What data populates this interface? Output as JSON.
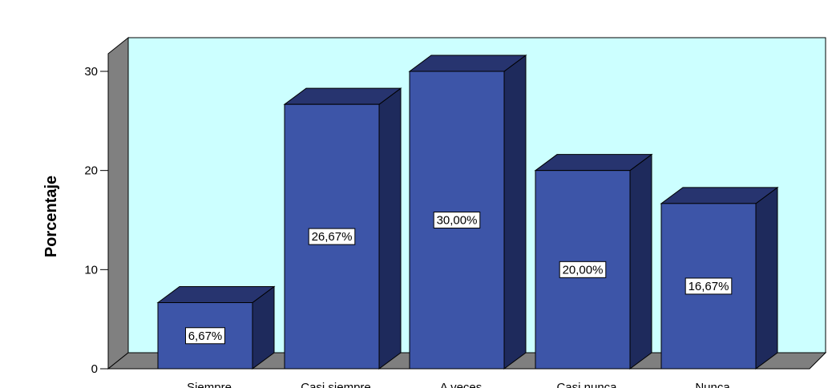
{
  "chart_data": {
    "type": "bar",
    "categories": [
      "Siempre",
      "Casi siempre",
      "A veces",
      "Casi nunca",
      "Nunca"
    ],
    "values": [
      6.67,
      26.67,
      30.0,
      20.0,
      16.67
    ],
    "data_labels": [
      "6,67%",
      "26,67%",
      "30,00%",
      "20,00%",
      "16,67%"
    ],
    "ylabel": "Porcentaje",
    "ylim": [
      0,
      32
    ],
    "yticks": [
      0,
      10,
      20,
      30
    ],
    "style": "3d",
    "colors": {
      "plot_background": "#ccffff",
      "bar_front": "#3d55a8",
      "bar_top": "#27346f",
      "bar_side": "#1e2a5c",
      "wall_side": "#808080",
      "floor": "#7f7f7f"
    }
  }
}
